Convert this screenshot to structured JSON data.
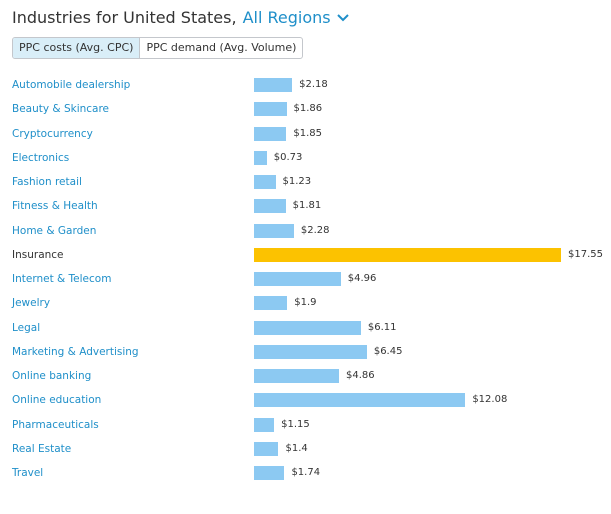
{
  "header": {
    "title": "Industries for United States,",
    "region": "All Regions"
  },
  "toggle": {
    "options": [
      "PPC costs (Avg. CPC)",
      "PPC demand (Avg. Volume)"
    ],
    "active_index": 0
  },
  "colors": {
    "bar": "#8cc9f2",
    "highlight_bar": "#fcc200",
    "link": "#1f8fc9"
  },
  "chart_data": {
    "type": "bar",
    "orientation": "horizontal",
    "value_prefix": "$",
    "categories": [
      "Automobile dealership",
      "Beauty & Skincare",
      "Cryptocurrency",
      "Electronics",
      "Fashion retail",
      "Fitness & Health",
      "Home & Garden",
      "Insurance",
      "Internet & Telecom",
      "Jewelry",
      "Legal",
      "Marketing & Advertising",
      "Online banking",
      "Online education",
      "Pharmaceuticals",
      "Real Estate",
      "Travel"
    ],
    "values": [
      2.18,
      1.86,
      1.85,
      0.73,
      1.23,
      1.81,
      2.28,
      17.55,
      4.96,
      1.9,
      6.11,
      6.45,
      4.86,
      12.08,
      1.15,
      1.4,
      1.74
    ],
    "value_labels": [
      "$2.18",
      "$1.86",
      "$1.85",
      "$0.73",
      "$1.23",
      "$1.81",
      "$2.28",
      "$17.55",
      "$4.96",
      "$1.9",
      "$6.11",
      "$6.45",
      "$4.86",
      "$12.08",
      "$1.15",
      "$1.4",
      "$1.74"
    ],
    "highlighted": "Insurance",
    "xlim": [
      0,
      17.55
    ]
  }
}
